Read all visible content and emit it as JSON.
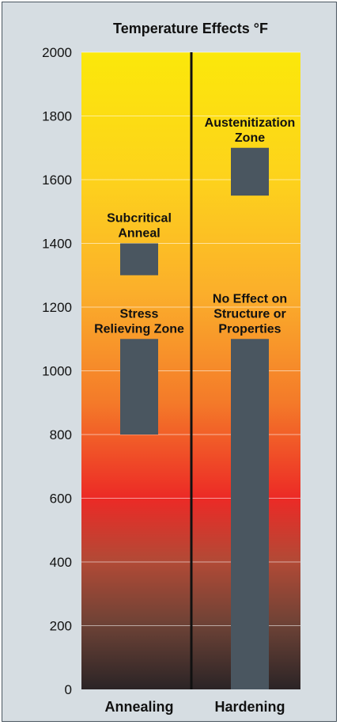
{
  "chart_data": {
    "type": "bar",
    "title": "Temperature Effects °F",
    "categories": [
      "Annealing",
      "Hardening"
    ],
    "ylim": [
      0,
      2000
    ],
    "yticks": [
      0,
      200,
      400,
      600,
      800,
      1000,
      1200,
      1400,
      1600,
      1800,
      2000
    ],
    "grid": true,
    "background": "temperature gradient: dark brown (0) → red (600) → orange → yellow (2000)",
    "bar_color": "#4a5660",
    "ranges": [
      {
        "category": "Annealing",
        "label": [
          "Subcritical",
          "Anneal"
        ],
        "low": 1300,
        "high": 1400
      },
      {
        "category": "Annealing",
        "label": [
          "Stress",
          "Relieving Zone"
        ],
        "low": 800,
        "high": 1100
      },
      {
        "category": "Hardening",
        "label": [
          "Austenitization",
          "Zone"
        ],
        "low": 1550,
        "high": 1700
      },
      {
        "category": "Hardening",
        "label": [
          "No Effect on",
          "Structure or",
          "Properties"
        ],
        "low": 0,
        "high": 1100
      }
    ]
  }
}
